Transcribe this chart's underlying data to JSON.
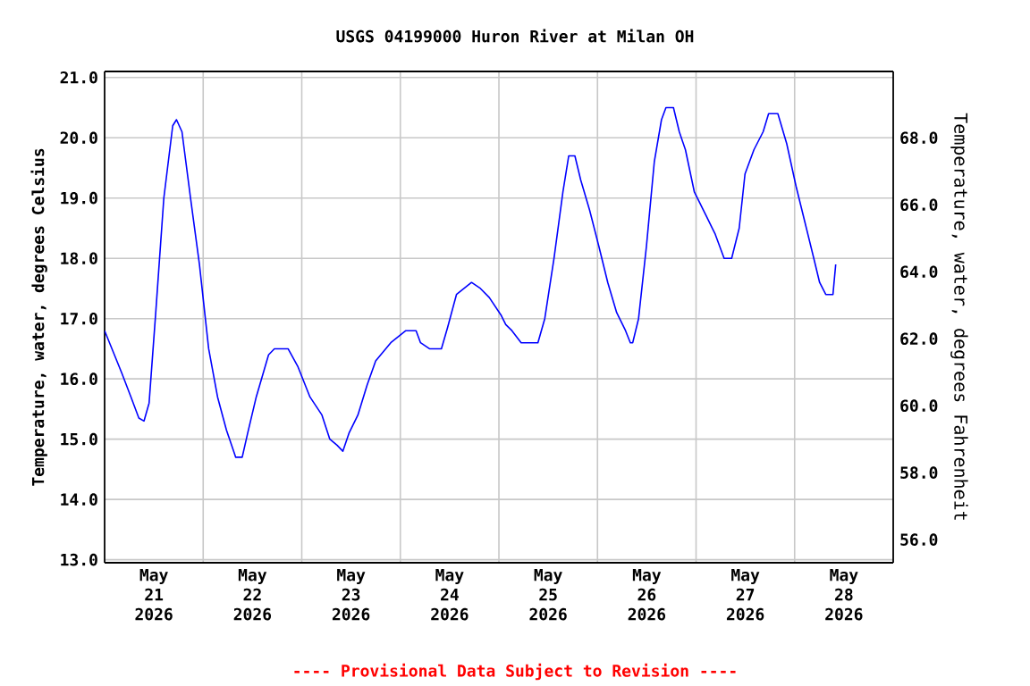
{
  "chart_data": {
    "type": "line",
    "title": "USGS 04199000 Huron River at Milan OH",
    "xlabel": null,
    "ylabel": "Temperature, water, degrees Celsius",
    "y2label": "Temperature, water, degrees Fahrenheit",
    "annotations": [
      "---- Provisional Data Subject to Revision ----"
    ],
    "grid": true,
    "marker": "none",
    "line_style": "solid",
    "xlim": [
      "2026-05-21T00:00",
      "2026-05-29T00:00"
    ],
    "xticks": [
      {
        "value": "2026-05-21T12:00",
        "label": "May 21 2026"
      },
      {
        "value": "2026-05-22T12:00",
        "label": "May 22 2026"
      },
      {
        "value": "2026-05-23T12:00",
        "label": "May 23 2026"
      },
      {
        "value": "2026-05-24T12:00",
        "label": "May 24 2026"
      },
      {
        "value": "2026-05-25T12:00",
        "label": "May 25 2026"
      },
      {
        "value": "2026-05-26T12:00",
        "label": "May 26 2026"
      },
      {
        "value": "2026-05-27T12:00",
        "label": "May 27 2026"
      },
      {
        "value": "2026-05-28T12:00",
        "label": "May 28 2026"
      },
      {
        "value": "2026-05-22T00:00",
        "label": null
      },
      {
        "value": "2026-05-23T00:00",
        "label": null
      },
      {
        "value": "2026-05-24T00:00",
        "label": null
      },
      {
        "value": "2026-05-25T00:00",
        "label": null
      },
      {
        "value": "2026-05-26T00:00",
        "label": null
      },
      {
        "value": "2026-05-27T00:00",
        "label": null
      },
      {
        "value": "2026-05-28T00:00",
        "label": null
      }
    ],
    "ylim": [
      12.95,
      21.1
    ],
    "yticks": [
      {
        "value": 13,
        "label": "13.0"
      },
      {
        "value": 14,
        "label": "14.0"
      },
      {
        "value": 15,
        "label": "15.0"
      },
      {
        "value": 16,
        "label": "16.0"
      },
      {
        "value": 17,
        "label": "17.0"
      },
      {
        "value": 18,
        "label": "18.0"
      },
      {
        "value": 19,
        "label": "19.0"
      },
      {
        "value": 20,
        "label": "20.0"
      },
      {
        "value": 21,
        "label": "21.0"
      }
    ],
    "y2lim": [
      55.31,
      69.98
    ],
    "y2ticks": [
      {
        "value": 56,
        "label": "56.0"
      },
      {
        "value": 58,
        "label": "58.0"
      },
      {
        "value": 60,
        "label": "60.0"
      },
      {
        "value": 62,
        "label": "62.0"
      },
      {
        "value": 64,
        "label": "64.0"
      },
      {
        "value": 66,
        "label": "66.0"
      },
      {
        "value": 68,
        "label": "68.0"
      }
    ],
    "x": [
      "2026-05-21T00:00",
      "2026-05-21T04:10",
      "2026-05-21T06:25",
      "2026-05-21T08:20",
      "2026-05-21T09:35",
      "2026-05-21T10:50",
      "2026-05-21T12:30",
      "2026-05-21T14:25",
      "2026-05-21T16:35",
      "2026-05-21T17:30",
      "2026-05-21T18:50",
      "2026-05-21T20:55",
      "2026-05-21T23:05",
      "2026-05-22T01:20",
      "2026-05-22T03:30",
      "2026-05-22T05:40",
      "2026-05-22T07:55",
      "2026-05-22T09:30",
      "2026-05-22T10:50",
      "2026-05-22T12:55",
      "2026-05-22T15:55",
      "2026-05-22T17:20",
      "2026-05-22T20:40",
      "2026-05-22T23:05",
      "2026-05-23T02:00",
      "2026-05-23T04:55",
      "2026-05-23T06:50",
      "2026-05-23T08:35",
      "2026-05-23T10:00",
      "2026-05-23T11:30",
      "2026-05-23T13:40",
      "2026-05-23T15:55",
      "2026-05-23T18:00",
      "2026-05-23T21:40",
      "2026-05-24T01:20",
      "2026-05-24T03:50",
      "2026-05-24T04:55",
      "2026-05-24T07:05",
      "2026-05-24T10:00",
      "2026-05-24T11:30",
      "2026-05-24T13:40",
      "2026-05-24T17:20",
      "2026-05-24T19:30",
      "2026-05-24T21:40",
      "2026-05-25T00:35",
      "2026-05-25T01:40",
      "2026-05-25T03:10",
      "2026-05-25T05:25",
      "2026-05-25T09:30",
      "2026-05-25T11:10",
      "2026-05-25T13:25",
      "2026-05-25T15:35",
      "2026-05-25T17:00",
      "2026-05-25T18:30",
      "2026-05-25T19:55",
      "2026-05-25T22:05",
      "2026-05-26T00:20",
      "2026-05-26T02:30",
      "2026-05-26T04:40",
      "2026-05-26T06:50",
      "2026-05-26T08:00",
      "2026-05-26T08:35",
      "2026-05-26T10:00",
      "2026-05-26T11:55",
      "2026-05-26T13:50",
      "2026-05-26T15:35",
      "2026-05-26T16:40",
      "2026-05-26T18:30",
      "2026-05-26T19:55",
      "2026-05-26T21:25",
      "2026-05-26T23:35",
      "2026-05-27T02:30",
      "2026-05-27T04:40",
      "2026-05-27T06:50",
      "2026-05-27T08:40",
      "2026-05-27T10:30",
      "2026-05-27T11:55",
      "2026-05-27T14:05",
      "2026-05-27T16:20",
      "2026-05-27T17:40",
      "2026-05-27T19:55",
      "2026-05-27T22:05",
      "2026-05-28T00:20",
      "2026-05-28T02:30",
      "2026-05-28T04:40",
      "2026-05-28T06:05",
      "2026-05-28T07:35",
      "2026-05-28T09:20",
      "2026-05-28T10:00"
    ],
    "series": [
      {
        "color": "#0000ff",
        "values": [
          16.8,
          16.1,
          15.7,
          15.35,
          15.3,
          15.6,
          17.15,
          19.0,
          20.2,
          20.3,
          20.1,
          19.0,
          17.9,
          16.5,
          15.7,
          15.15,
          14.7,
          14.7,
          15.1,
          15.7,
          16.4,
          16.5,
          16.5,
          16.2,
          15.7,
          15.4,
          15.0,
          14.9,
          14.8,
          15.1,
          15.4,
          15.9,
          16.3,
          16.6,
          16.8,
          16.8,
          16.6,
          16.5,
          16.5,
          16.85,
          17.4,
          17.6,
          17.5,
          17.35,
          17.05,
          16.9,
          16.8,
          16.6,
          16.6,
          17.0,
          18.0,
          19.1,
          19.7,
          19.7,
          19.3,
          18.8,
          18.2,
          17.6,
          17.1,
          16.8,
          16.6,
          16.6,
          17.0,
          18.2,
          19.6,
          20.3,
          20.5,
          20.5,
          20.1,
          19.8,
          19.1,
          18.7,
          18.4,
          18.0,
          18.0,
          18.5,
          19.4,
          19.8,
          20.1,
          20.4,
          20.4,
          19.9,
          19.2,
          18.6,
          18.0,
          17.6,
          17.4,
          17.4,
          17.9
        ]
      }
    ]
  }
}
